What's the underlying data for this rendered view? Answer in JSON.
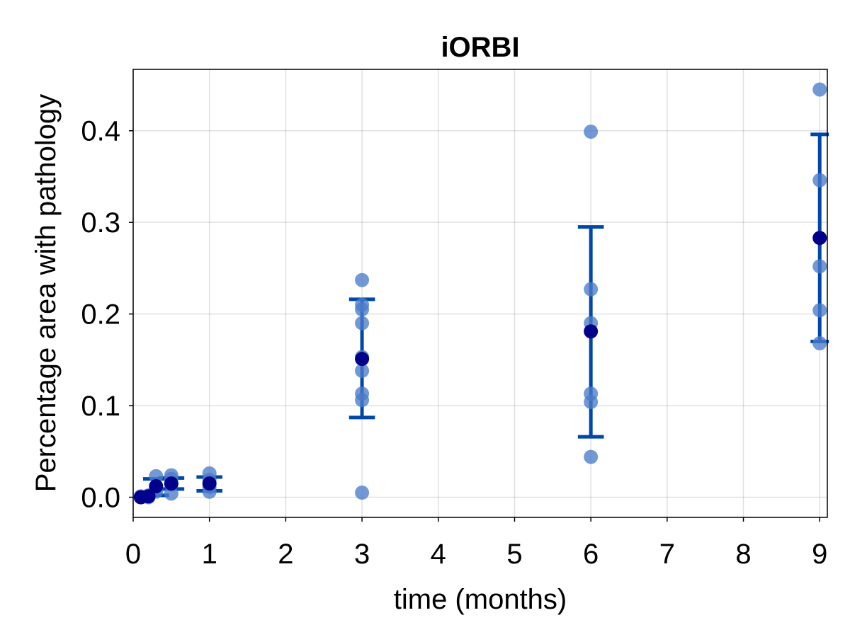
{
  "chart_data": {
    "type": "scatter",
    "title": "iORBI",
    "xlabel": "time (months)",
    "ylabel": "Percentage area with pathology",
    "xlim": [
      0,
      9.1
    ],
    "ylim": [
      -0.022,
      0.467
    ],
    "xticks": [
      0,
      1,
      2,
      3,
      4,
      5,
      6,
      7,
      8,
      9
    ],
    "yticks": [
      0.0,
      0.1,
      0.2,
      0.3,
      0.4
    ],
    "ytick_labels": [
      "0.0",
      "0.1",
      "0.2",
      "0.3",
      "0.4"
    ],
    "grid": true,
    "colors": {
      "points": "#4a7cc9",
      "mean": "#00008b",
      "errorbar": "#0047a8"
    },
    "series": [
      {
        "points": [
          {
            "x": 0.1,
            "y": 0.0
          },
          {
            "x": 0.1,
            "y": 0.001
          },
          {
            "x": 0.1,
            "y": 0.0
          },
          {
            "x": 0.2,
            "y": 0.001
          },
          {
            "x": 0.2,
            "y": 0.002
          },
          {
            "x": 0.2,
            "y": 0.0
          },
          {
            "x": 0.3,
            "y": 0.023
          },
          {
            "x": 0.3,
            "y": 0.01
          },
          {
            "x": 0.3,
            "y": 0.006
          },
          {
            "x": 0.5,
            "y": 0.024
          },
          {
            "x": 0.5,
            "y": 0.02
          },
          {
            "x": 0.5,
            "y": 0.014
          },
          {
            "x": 0.5,
            "y": 0.004
          },
          {
            "x": 1,
            "y": 0.026
          },
          {
            "x": 1,
            "y": 0.019
          },
          {
            "x": 1,
            "y": 0.011
          },
          {
            "x": 1,
            "y": 0.006
          },
          {
            "x": 3,
            "y": 0.237
          },
          {
            "x": 3,
            "y": 0.21
          },
          {
            "x": 3,
            "y": 0.205
          },
          {
            "x": 3,
            "y": 0.19
          },
          {
            "x": 3,
            "y": 0.153
          },
          {
            "x": 3,
            "y": 0.138
          },
          {
            "x": 3,
            "y": 0.113
          },
          {
            "x": 3,
            "y": 0.106
          },
          {
            "x": 3,
            "y": 0.005
          },
          {
            "x": 6,
            "y": 0.399
          },
          {
            "x": 6,
            "y": 0.227
          },
          {
            "x": 6,
            "y": 0.19
          },
          {
            "x": 6,
            "y": 0.113
          },
          {
            "x": 6,
            "y": 0.104
          },
          {
            "x": 6,
            "y": 0.044
          },
          {
            "x": 9,
            "y": 0.445
          },
          {
            "x": 9,
            "y": 0.346
          },
          {
            "x": 9,
            "y": 0.252
          },
          {
            "x": 9,
            "y": 0.204
          },
          {
            "x": 9,
            "y": 0.168
          }
        ]
      }
    ],
    "means": [
      {
        "x": 0.1,
        "y": 0.0
      },
      {
        "x": 0.2,
        "y": 0.001
      },
      {
        "x": 0.3,
        "y": 0.012
      },
      {
        "x": 0.5,
        "y": 0.015
      },
      {
        "x": 1,
        "y": 0.015
      },
      {
        "x": 3,
        "y": 0.151
      },
      {
        "x": 6,
        "y": 0.181
      },
      {
        "x": 9,
        "y": 0.283
      }
    ],
    "error_bars": [
      {
        "x": 0.1,
        "low": 0.0,
        "high": 0.001,
        "cap_half_width": 0.05
      },
      {
        "x": 0.2,
        "low": 0.0,
        "high": 0.003,
        "cap_half_width": 0.05
      },
      {
        "x": 0.3,
        "low": 0.002,
        "high": 0.02,
        "cap_half_width": 0.17
      },
      {
        "x": 0.5,
        "low": 0.009,
        "high": 0.021,
        "cap_half_width": 0.17
      },
      {
        "x": 1,
        "low": 0.007,
        "high": 0.022,
        "cap_half_width": 0.17
      },
      {
        "x": 3,
        "low": 0.087,
        "high": 0.216,
        "cap_half_width": 0.17
      },
      {
        "x": 6,
        "low": 0.066,
        "high": 0.295,
        "cap_half_width": 0.17
      },
      {
        "x": 9,
        "low": 0.17,
        "high": 0.396,
        "cap_half_width": 0.12
      }
    ]
  }
}
